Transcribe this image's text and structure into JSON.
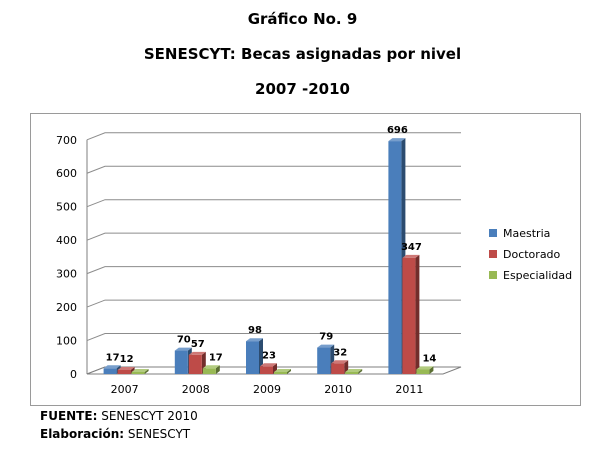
{
  "header": {
    "chart_number": "Gráfico No. 9",
    "title": "SENESCYT: Becas asignadas por nivel",
    "period": "2007 -2010"
  },
  "footer": {
    "source_label": "FUENTE:",
    "source_value": "SENESCYT 2010",
    "elaboration_label": "Elaboración:",
    "elaboration_value": "SENESCYT"
  },
  "chart_data": {
    "type": "bar",
    "style": "3d-clustered-column",
    "categories": [
      "2007",
      "2008",
      "2009",
      "2010",
      "2011"
    ],
    "series": [
      {
        "name": "Maestria",
        "color": "#4a7ebb",
        "values": [
          17,
          70,
          98,
          79,
          696
        ]
      },
      {
        "name": "Doctorado",
        "color": "#be4b48",
        "values": [
          12,
          57,
          23,
          32,
          347
        ]
      },
      {
        "name": "Especialidad",
        "color": "#98b954",
        "values": [
          null,
          17,
          null,
          null,
          14
        ]
      }
    ],
    "ylim": [
      0,
      700
    ],
    "yticks": [
      0,
      100,
      200,
      300,
      400,
      500,
      600,
      700
    ],
    "grid": true,
    "legend": "right",
    "xlabel": "",
    "ylabel": ""
  }
}
